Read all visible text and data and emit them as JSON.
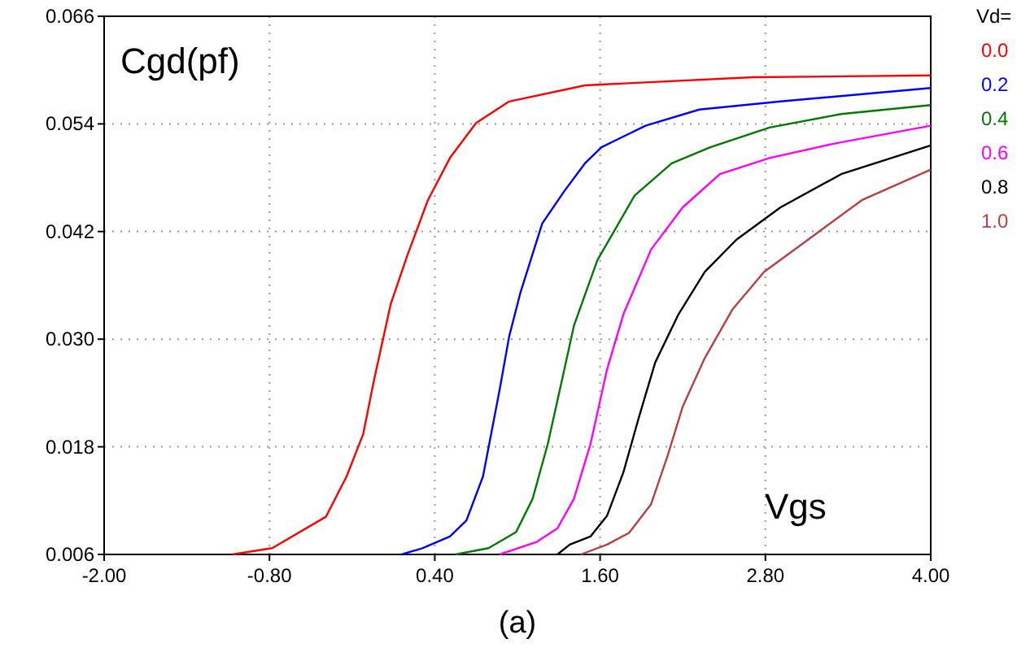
{
  "chart_data": {
    "type": "line",
    "title": "(a)",
    "xlabel": "Vgs",
    "ylabel": "Cgd(pf)",
    "legend_title": "Vd=",
    "legend": "right",
    "grid": true,
    "marker": "none",
    "line_style": "solid",
    "xlim": [
      -2,
      4
    ],
    "xticks": [
      {
        "value": -2,
        "label": "-2.00"
      },
      {
        "value": -0.8,
        "label": "-0.80"
      },
      {
        "value": 0.4,
        "label": "0.40"
      },
      {
        "value": 1.6,
        "label": "1.60"
      },
      {
        "value": 2.8,
        "label": "2.80"
      },
      {
        "value": 4,
        "label": "4.00"
      }
    ],
    "ylim": [
      0.006,
      0.066
    ],
    "yticks": [
      0.006,
      0.018,
      {
        "value": 0.03,
        "label": "0.030"
      },
      0.042,
      0.054,
      0.066
    ],
    "series": [
      {
        "name": "0.0",
        "color": "#ff0000",
        "x": [
          -1.07,
          -0.78,
          -0.39,
          -0.24,
          -0.12,
          -0.04,
          0.08,
          0.2,
          0.35,
          0.51,
          0.7,
          0.94,
          1.49,
          2.71,
          4
        ],
        "values": [
          0.006,
          0.0067,
          0.0102,
          0.0147,
          0.0194,
          0.0255,
          0.0339,
          0.0393,
          0.0455,
          0.0502,
          0.0541,
          0.0565,
          0.0583,
          0.0592,
          0.0594
        ]
      },
      {
        "name": "0.2",
        "color": "#0000ff",
        "x": [
          0.16,
          0.31,
          0.51,
          0.63,
          0.75,
          0.87,
          0.94,
          1.02,
          1.18,
          1.34,
          1.49,
          1.61,
          1.93,
          2.32,
          2.91,
          4
        ],
        "values": [
          0.006,
          0.0067,
          0.008,
          0.0098,
          0.0147,
          0.0243,
          0.0303,
          0.0351,
          0.0429,
          0.0465,
          0.0496,
          0.0514,
          0.0538,
          0.0556,
          0.0565,
          0.058
        ]
      },
      {
        "name": "0.4",
        "color": "#007a00",
        "x": [
          0.55,
          0.79,
          0.99,
          1.11,
          1.22,
          1.34,
          1.41,
          1.58,
          1.85,
          2.12,
          2.4,
          2.83,
          3.35,
          4
        ],
        "values": [
          0.006,
          0.0067,
          0.0085,
          0.0122,
          0.0183,
          0.0266,
          0.0315,
          0.0388,
          0.046,
          0.0496,
          0.0514,
          0.0536,
          0.0551,
          0.0561
        ]
      },
      {
        "name": "0.6",
        "color": "#ff00ff",
        "x": [
          0.87,
          1.14,
          1.29,
          1.41,
          1.53,
          1.65,
          1.77,
          1.97,
          2.2,
          2.47,
          2.83,
          3.3,
          4
        ],
        "values": [
          0.006,
          0.0074,
          0.0089,
          0.0122,
          0.0183,
          0.0266,
          0.0328,
          0.04,
          0.0447,
          0.0484,
          0.0502,
          0.0518,
          0.0538
        ]
      },
      {
        "name": "0.8",
        "color": "#000000",
        "x": [
          1.29,
          1.38,
          1.53,
          1.65,
          1.77,
          1.88,
          2,
          2.17,
          2.36,
          2.59,
          2.91,
          3.35,
          4
        ],
        "values": [
          0.006,
          0.0071,
          0.008,
          0.0103,
          0.0152,
          0.0212,
          0.0274,
          0.0328,
          0.0375,
          0.0411,
          0.0447,
          0.0484,
          0.0516
        ]
      },
      {
        "name": "1.0",
        "color": "#b84040",
        "x": [
          1.46,
          1.65,
          1.81,
          1.97,
          2.09,
          2.2,
          2.36,
          2.56,
          2.79,
          3.11,
          3.5,
          4
        ],
        "values": [
          0.006,
          0.0071,
          0.0084,
          0.0116,
          0.017,
          0.0225,
          0.0279,
          0.0333,
          0.0375,
          0.0411,
          0.0455,
          0.0489
        ]
      }
    ]
  }
}
